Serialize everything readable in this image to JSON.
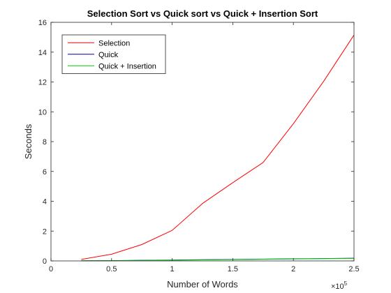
{
  "chart_data": {
    "type": "line",
    "title": "Selection Sort vs Quick sort vs Quick + Insertion Sort",
    "xlabel": "Number of Words",
    "ylabel": "Seconds",
    "xlim": [
      0,
      250000
    ],
    "ylim": [
      0,
      16
    ],
    "x_tick_values": [
      0,
      50000,
      100000,
      150000,
      200000,
      250000
    ],
    "x_tick_labels": [
      "0",
      "0.5",
      "1",
      "1.5",
      "2",
      "2.5"
    ],
    "x_exponent_base": "×10",
    "x_exponent_power": "5",
    "y_ticks": [
      0,
      2,
      4,
      6,
      8,
      10,
      12,
      14,
      16
    ],
    "grid": false,
    "legend_position": "top-left",
    "x": [
      25000,
      50000,
      75000,
      100000,
      125000,
      150000,
      175000,
      200000,
      225000,
      250000
    ],
    "series": [
      {
        "name": "Selection",
        "color": "#ff0000",
        "values": [
          0.1,
          0.45,
          1.1,
          2.05,
          3.85,
          5.25,
          6.6,
          9.2,
          12.05,
          15.15
        ]
      },
      {
        "name": "Quick",
        "color": "#0000aa",
        "values": [
          0.01,
          0.02,
          0.04,
          0.06,
          0.08,
          0.1,
          0.12,
          0.14,
          0.16,
          0.18
        ]
      },
      {
        "name": "Quick + Insertion",
        "color": "#00cc00",
        "values": [
          0.01,
          0.02,
          0.03,
          0.05,
          0.07,
          0.09,
          0.11,
          0.13,
          0.15,
          0.17
        ]
      }
    ]
  }
}
